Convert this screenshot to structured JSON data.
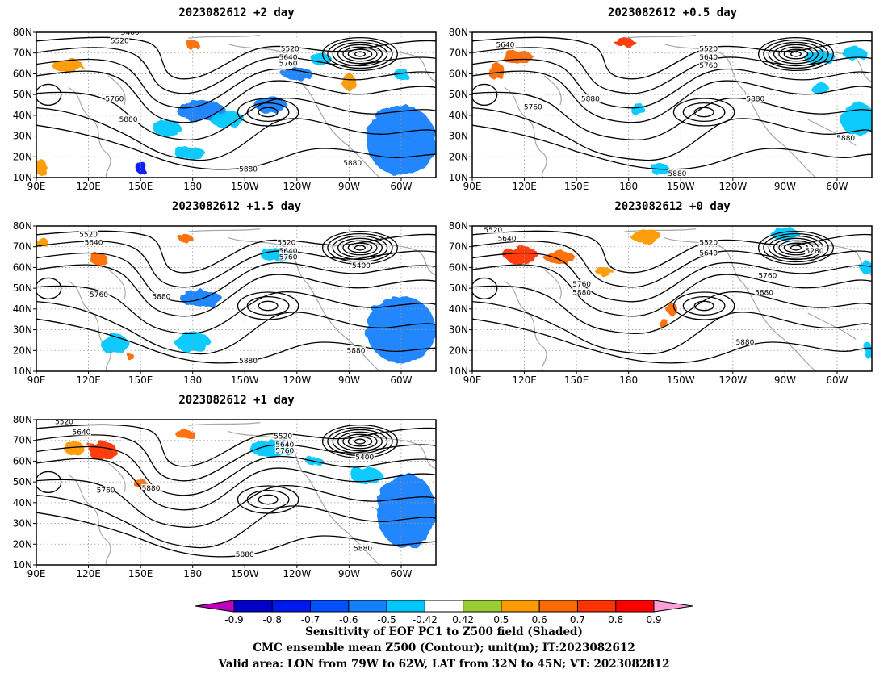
{
  "chart_data": [
    {
      "type": "heatmap",
      "title": "2023082612 +2 day",
      "x_ticks": [
        "90E",
        "120E",
        "150E",
        "180",
        "150W",
        "120W",
        "90W",
        "60W"
      ],
      "y_ticks": [
        "10N",
        "20N",
        "30N",
        "40N",
        "50N",
        "60N",
        "70N",
        "80N"
      ],
      "xlim": [
        90,
        320
      ],
      "ylim": [
        10,
        80
      ],
      "contour_labels": [
        {
          "value": "5400",
          "lon": 144,
          "lat": 80
        },
        {
          "value": "5520",
          "lon": 138,
          "lat": 76
        },
        {
          "value": "5520",
          "lon": 236,
          "lat": 72
        },
        {
          "value": "5640",
          "lon": 235,
          "lat": 68
        },
        {
          "value": "5760",
          "lon": 235,
          "lat": 65
        },
        {
          "value": "5760",
          "lon": 135,
          "lat": 48
        },
        {
          "value": "5880",
          "lon": 143,
          "lat": 38
        },
        {
          "value": "5880",
          "lon": 212,
          "lat": 14
        },
        {
          "value": "5880",
          "lon": 272,
          "lat": 17
        }
      ],
      "shading": [
        {
          "lon": 185,
          "lat": 42,
          "rx": 14,
          "ry": 5,
          "v": -0.6
        },
        {
          "lon": 200,
          "lat": 38,
          "rx": 10,
          "ry": 4,
          "v": -0.5
        },
        {
          "lon": 225,
          "lat": 45,
          "rx": 9,
          "ry": 4,
          "v": -0.55
        },
        {
          "lon": 240,
          "lat": 60,
          "rx": 9,
          "ry": 3,
          "v": -0.6
        },
        {
          "lon": 254,
          "lat": 67,
          "rx": 6,
          "ry": 3,
          "v": -0.5
        },
        {
          "lon": 300,
          "lat": 60,
          "rx": 4,
          "ry": 3,
          "v": -0.5
        },
        {
          "lon": 300,
          "lat": 28,
          "rx": 20,
          "ry": 17,
          "v": -0.55
        },
        {
          "lon": 165,
          "lat": 34,
          "rx": 8,
          "ry": 4,
          "v": -0.5
        },
        {
          "lon": 150,
          "lat": 15,
          "rx": 3,
          "ry": 3,
          "v": -0.8
        },
        {
          "lon": 178,
          "lat": 22,
          "rx": 9,
          "ry": 3,
          "v": -0.5
        },
        {
          "lon": 108,
          "lat": 64,
          "rx": 9,
          "ry": 3,
          "v": 0.5
        },
        {
          "lon": 92,
          "lat": 15,
          "rx": 4,
          "ry": 4,
          "v": 0.5
        },
        {
          "lon": 180,
          "lat": 74,
          "rx": 4,
          "ry": 2,
          "v": 0.6
        },
        {
          "lon": 270,
          "lat": 56,
          "rx": 4,
          "ry": 4,
          "v": 0.5
        }
      ]
    },
    {
      "type": "heatmap",
      "title": "2023082612 +0.5 day",
      "x_ticks": [
        "90E",
        "120E",
        "150E",
        "180",
        "150W",
        "120W",
        "90W",
        "60W"
      ],
      "y_ticks": [
        "10N",
        "20N",
        "30N",
        "40N",
        "50N",
        "60N",
        "70N",
        "80N"
      ],
      "xlim": [
        90,
        320
      ],
      "ylim": [
        10,
        80
      ],
      "contour_labels": [
        {
          "value": "5640",
          "lon": 109,
          "lat": 74
        },
        {
          "value": "5520",
          "lon": 226,
          "lat": 72
        },
        {
          "value": "5640",
          "lon": 226,
          "lat": 68
        },
        {
          "value": "5760",
          "lon": 226,
          "lat": 64
        },
        {
          "value": "5760",
          "lon": 125,
          "lat": 44
        },
        {
          "value": "5880",
          "lon": 158,
          "lat": 48
        },
        {
          "value": "5880",
          "lon": 253,
          "lat": 48
        },
        {
          "value": "5880",
          "lon": 305,
          "lat": 29
        },
        {
          "value": "5880",
          "lon": 208,
          "lat": 12
        }
      ],
      "shading": [
        {
          "lon": 116,
          "lat": 68,
          "rx": 9,
          "ry": 3,
          "v": 0.6
        },
        {
          "lon": 104,
          "lat": 61,
          "rx": 5,
          "ry": 4,
          "v": 0.6
        },
        {
          "lon": 178,
          "lat": 75,
          "rx": 6,
          "ry": 2,
          "v": 0.7
        },
        {
          "lon": 290,
          "lat": 68,
          "rx": 9,
          "ry": 3,
          "v": -0.5
        },
        {
          "lon": 312,
          "lat": 38,
          "rx": 10,
          "ry": 8,
          "v": -0.5
        },
        {
          "lon": 310,
          "lat": 70,
          "rx": 7,
          "ry": 3,
          "v": -0.5
        },
        {
          "lon": 290,
          "lat": 53,
          "rx": 5,
          "ry": 3,
          "v": -0.5
        },
        {
          "lon": 185,
          "lat": 43,
          "rx": 4,
          "ry": 3,
          "v": -0.5
        },
        {
          "lon": 198,
          "lat": 14,
          "rx": 5,
          "ry": 3,
          "v": -0.5
        }
      ]
    },
    {
      "type": "heatmap",
      "title": "2023082612 +1.5 day",
      "x_ticks": [
        "90E",
        "120E",
        "150E",
        "180",
        "150W",
        "120W",
        "90W",
        "60W"
      ],
      "y_ticks": [
        "10N",
        "20N",
        "30N",
        "40N",
        "50N",
        "60N",
        "70N",
        "80N"
      ],
      "xlim": [
        90,
        320
      ],
      "ylim": [
        10,
        80
      ],
      "contour_labels": [
        {
          "value": "5520",
          "lon": 120,
          "lat": 76
        },
        {
          "value": "5640",
          "lon": 123,
          "lat": 72
        },
        {
          "value": "5520",
          "lon": 234,
          "lat": 72
        },
        {
          "value": "5640",
          "lon": 235,
          "lat": 68
        },
        {
          "value": "5760",
          "lon": 235,
          "lat": 65
        },
        {
          "value": "5400",
          "lon": 277,
          "lat": 61
        },
        {
          "value": "5760",
          "lon": 126,
          "lat": 47
        },
        {
          "value": "5880",
          "lon": 162,
          "lat": 46
        },
        {
          "value": "5880",
          "lon": 212,
          "lat": 15
        },
        {
          "value": "5880",
          "lon": 274,
          "lat": 20
        }
      ],
      "shading": [
        {
          "lon": 185,
          "lat": 45,
          "rx": 12,
          "ry": 4,
          "v": -0.6
        },
        {
          "lon": 228,
          "lat": 66,
          "rx": 9,
          "ry": 3,
          "v": -0.5
        },
        {
          "lon": 300,
          "lat": 30,
          "rx": 20,
          "ry": 16,
          "v": -0.55
        },
        {
          "lon": 135,
          "lat": 23,
          "rx": 8,
          "ry": 5,
          "v": -0.5
        },
        {
          "lon": 180,
          "lat": 24,
          "rx": 10,
          "ry": 5,
          "v": -0.5
        },
        {
          "lon": 126,
          "lat": 64,
          "rx": 5,
          "ry": 3,
          "v": 0.6
        },
        {
          "lon": 93,
          "lat": 72,
          "rx": 4,
          "ry": 2,
          "v": 0.5
        },
        {
          "lon": 176,
          "lat": 74,
          "rx": 4,
          "ry": 2,
          "v": 0.6
        },
        {
          "lon": 144,
          "lat": 17,
          "rx": 2,
          "ry": 2,
          "v": 0.6
        }
      ]
    },
    {
      "type": "heatmap",
      "title": "2023082612 +0 day",
      "x_ticks": [
        "90E",
        "120E",
        "150E",
        "180",
        "150W",
        "120W",
        "90W",
        "60W"
      ],
      "y_ticks": [
        "10N",
        "20N",
        "30N",
        "40N",
        "50N",
        "60N",
        "70N",
        "80N"
      ],
      "xlim": [
        90,
        320
      ],
      "ylim": [
        10,
        80
      ],
      "contour_labels": [
        {
          "value": "5520",
          "lon": 102,
          "lat": 78
        },
        {
          "value": "5640",
          "lon": 110,
          "lat": 74
        },
        {
          "value": "5520",
          "lon": 226,
          "lat": 72
        },
        {
          "value": "5640",
          "lon": 226,
          "lat": 67
        },
        {
          "value": "5280",
          "lon": 287,
          "lat": 68
        },
        {
          "value": "5760",
          "lon": 153,
          "lat": 52
        },
        {
          "value": "5880",
          "lon": 153,
          "lat": 48
        },
        {
          "value": "5760",
          "lon": 260,
          "lat": 56
        },
        {
          "value": "5880",
          "lon": 258,
          "lat": 48
        },
        {
          "value": "5880",
          "lon": 247,
          "lat": 24
        }
      ],
      "shading": [
        {
          "lon": 118,
          "lat": 66,
          "rx": 10,
          "ry": 4,
          "v": 0.7
        },
        {
          "lon": 140,
          "lat": 65,
          "rx": 9,
          "ry": 3,
          "v": 0.6
        },
        {
          "lon": 190,
          "lat": 75,
          "rx": 9,
          "ry": 3,
          "v": 0.5
        },
        {
          "lon": 166,
          "lat": 58,
          "rx": 5,
          "ry": 2,
          "v": 0.5
        },
        {
          "lon": 205,
          "lat": 40,
          "rx": 3,
          "ry": 3,
          "v": 0.6
        },
        {
          "lon": 200,
          "lat": 33,
          "rx": 2,
          "ry": 3,
          "v": 0.6
        },
        {
          "lon": 270,
          "lat": 76,
          "rx": 8,
          "ry": 3,
          "v": -0.5
        },
        {
          "lon": 317,
          "lat": 60,
          "rx": 4,
          "ry": 3,
          "v": -0.5
        },
        {
          "lon": 318,
          "lat": 20,
          "rx": 2,
          "ry": 4,
          "v": -0.5
        }
      ]
    },
    {
      "type": "heatmap",
      "title": "2023082612 +1 day",
      "x_ticks": [
        "90E",
        "120E",
        "150E",
        "180",
        "150W",
        "120W",
        "90W",
        "60W"
      ],
      "y_ticks": [
        "10N",
        "20N",
        "30N",
        "40N",
        "50N",
        "60N",
        "70N",
        "80N"
      ],
      "xlim": [
        90,
        320
      ],
      "ylim": [
        10,
        80
      ],
      "contour_labels": [
        {
          "value": "5520",
          "lon": 106,
          "lat": 79
        },
        {
          "value": "5640",
          "lon": 116,
          "lat": 74
        },
        {
          "value": "5520",
          "lon": 232,
          "lat": 72
        },
        {
          "value": "5640",
          "lon": 233,
          "lat": 68
        },
        {
          "value": "5760",
          "lon": 233,
          "lat": 65
        },
        {
          "value": "5400",
          "lon": 279,
          "lat": 62
        },
        {
          "value": "5760",
          "lon": 130,
          "lat": 46
        },
        {
          "value": "5880",
          "lon": 156,
          "lat": 47
        },
        {
          "value": "5880",
          "lon": 210,
          "lat": 15
        },
        {
          "value": "5880",
          "lon": 278,
          "lat": 18
        }
      ],
      "shading": [
        {
          "lon": 128,
          "lat": 65,
          "rx": 8,
          "ry": 5,
          "v": 0.7
        },
        {
          "lon": 112,
          "lat": 66,
          "rx": 6,
          "ry": 3,
          "v": 0.5
        },
        {
          "lon": 150,
          "lat": 49,
          "rx": 4,
          "ry": 2,
          "v": 0.6
        },
        {
          "lon": 176,
          "lat": 73,
          "rx": 6,
          "ry": 2,
          "v": 0.6
        },
        {
          "lon": 225,
          "lat": 66,
          "rx": 12,
          "ry": 4,
          "v": -0.5
        },
        {
          "lon": 303,
          "lat": 36,
          "rx": 17,
          "ry": 18,
          "v": -0.55
        },
        {
          "lon": 280,
          "lat": 53,
          "rx": 9,
          "ry": 4,
          "v": -0.5
        },
        {
          "lon": 250,
          "lat": 60,
          "rx": 5,
          "ry": 2,
          "v": -0.5
        }
      ]
    }
  ],
  "colorbar": {
    "levels": [
      "-0.9",
      "-0.8",
      "-0.7",
      "-0.6",
      "-0.5",
      "-0.42",
      "0.42",
      "0.5",
      "0.6",
      "0.7",
      "0.8",
      "0.9"
    ],
    "colors": [
      "#c000c0",
      "#0000c8",
      "#0018f0",
      "#0050ff",
      "#1480ff",
      "#00c8ff",
      "#ffffff",
      "#9acd32",
      "#ff9900",
      "#ff6a00",
      "#ff3300",
      "#ff0000",
      "#ff9ed8"
    ]
  },
  "captions": {
    "line1": "Sensitivity of EOF PC1 to Z500 field (Shaded)",
    "line2": "CMC ensemble mean Z500 (Contour); unit(m); IT:2023082612",
    "line3": "Valid area: LON from 79W to 62W, LAT from 32N to 45N; VT: 2023082812"
  }
}
